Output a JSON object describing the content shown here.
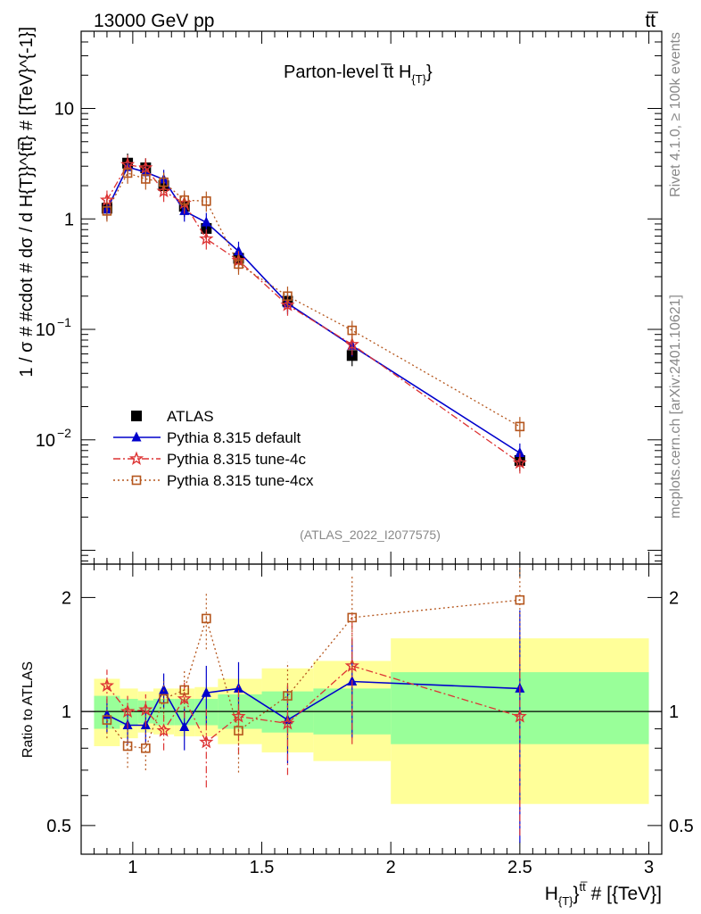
{
  "header": {
    "left": "13000 GeV pp",
    "right": "tt̅"
  },
  "side": {
    "top": "Rivet 4.1.0, ≥ 100k events",
    "bottom": "mcplots.cern.ch [arXiv:2401.10621]"
  },
  "chart_data": [
    {
      "type": "scatter",
      "panel": "main",
      "title": "Parton-level t̅t  H{T}",
      "title_parts": [
        "Parton-level t̅t  H",
        "{T}",
        "}"
      ],
      "ylabel": "1 / σ # #cdot # dσ / d H{T}}^{tt̅} # [{TeV}^{-1}]",
      "yscale": "log",
      "ylim": [
        0.00075,
        50
      ],
      "xlim": [
        0.8,
        3.05
      ],
      "yticks": [
        {
          "v": 10,
          "label": "10"
        },
        {
          "v": 1,
          "label": "1"
        },
        {
          "v": 0.1,
          "label": "10",
          "exp": "−1"
        },
        {
          "v": 0.01,
          "label": "10",
          "exp": "−2"
        }
      ],
      "watermark": "(ATLAS_2022_I2077575)",
      "legend_position": "lower-left",
      "series": [
        {
          "name": "ATLAS",
          "color": "#000000",
          "marker": "square",
          "line": "none",
          "x": [
            0.9,
            0.98,
            1.05,
            1.12,
            1.2,
            1.285,
            1.41,
            1.6,
            1.85,
            2.5
          ],
          "y": [
            1.25,
            3.2,
            2.9,
            2.0,
            1.3,
            0.82,
            0.44,
            0.18,
            0.058,
            0.0065
          ]
        },
        {
          "name": "Pythia 8.315 default",
          "color": "#0000cc",
          "marker": "triangle",
          "line": "solid",
          "x": [
            0.9,
            0.98,
            1.05,
            1.12,
            1.2,
            1.285,
            1.41,
            1.6,
            1.85,
            2.5
          ],
          "y": [
            1.22,
            2.95,
            2.65,
            2.28,
            1.18,
            0.93,
            0.51,
            0.172,
            0.071,
            0.0076
          ]
        },
        {
          "name": "Pythia 8.315 tune-4c",
          "color": "#dd3333",
          "marker": "star",
          "line": "dashdot",
          "x": [
            0.9,
            0.98,
            1.05,
            1.12,
            1.2,
            1.285,
            1.41,
            1.6,
            1.85,
            2.5
          ],
          "y": [
            1.48,
            3.1,
            2.9,
            1.78,
            1.39,
            0.66,
            0.42,
            0.166,
            0.073,
            0.0062
          ]
        },
        {
          "name": "Pythia 8.315 tune-4cx",
          "color": "#b5561d",
          "marker": "open-square",
          "line": "dotted",
          "x": [
            0.9,
            0.98,
            1.05,
            1.12,
            1.2,
            1.285,
            1.41,
            1.6,
            1.85,
            2.5
          ],
          "y": [
            1.18,
            2.6,
            2.3,
            2.15,
            1.48,
            1.45,
            0.39,
            0.2,
            0.098,
            0.0132
          ]
        }
      ]
    },
    {
      "type": "scatter",
      "panel": "ratio",
      "ylabel": "Ratio to ATLAS",
      "xlabel": "H{T}}^{tt̅} # [{TeV}]",
      "xlabel_parts": [
        "H",
        "{T}",
        "}",
        "tt̅",
        " # [{TeV}]"
      ],
      "ylim": [
        0.42,
        2.45
      ],
      "yscale": "log",
      "yticks": [
        {
          "v": 0.5,
          "label": "0.5"
        },
        {
          "v": 1,
          "label": "1"
        },
        {
          "v": 2,
          "label": "2"
        }
      ],
      "xticks": [
        {
          "v": 1,
          "label": "1"
        },
        {
          "v": 1.5,
          "label": "1.5"
        },
        {
          "v": 2,
          "label": "2"
        },
        {
          "v": 2.5,
          "label": "2.5"
        },
        {
          "v": 3,
          "label": "3"
        }
      ],
      "bins": [
        {
          "lo": 0.85,
          "hi": 0.95,
          "stat": [
            0.9,
            1.1
          ],
          "tot": [
            0.81,
            1.22
          ]
        },
        {
          "lo": 0.95,
          "hi": 1.02,
          "stat": [
            0.92,
            1.08
          ],
          "tot": [
            0.85,
            1.15
          ]
        },
        {
          "lo": 1.02,
          "hi": 1.08,
          "stat": [
            0.93,
            1.07
          ],
          "tot": [
            0.88,
            1.13
          ]
        },
        {
          "lo": 1.08,
          "hi": 1.16,
          "stat": [
            0.92,
            1.08
          ],
          "tot": [
            0.87,
            1.15
          ]
        },
        {
          "lo": 1.16,
          "hi": 1.24,
          "stat": [
            0.92,
            1.08
          ],
          "tot": [
            0.86,
            1.15
          ]
        },
        {
          "lo": 1.24,
          "hi": 1.33,
          "stat": [
            0.92,
            1.08
          ],
          "tot": [
            0.86,
            1.16
          ]
        },
        {
          "lo": 1.33,
          "hi": 1.5,
          "stat": [
            0.9,
            1.11
          ],
          "tot": [
            0.82,
            1.22
          ]
        },
        {
          "lo": 1.5,
          "hi": 1.7,
          "stat": [
            0.88,
            1.13
          ],
          "tot": [
            0.78,
            1.3
          ]
        },
        {
          "lo": 1.7,
          "hi": 2.0,
          "stat": [
            0.87,
            1.15
          ],
          "tot": [
            0.74,
            1.36
          ]
        },
        {
          "lo": 2.0,
          "hi": 3.0,
          "stat": [
            0.82,
            1.27
          ],
          "tot": [
            0.57,
            1.56
          ]
        }
      ],
      "series": [
        {
          "name": "Pythia 8.315 default",
          "color": "#0000cc",
          "marker": "triangle",
          "line": "solid",
          "x": [
            0.9,
            0.98,
            1.05,
            1.12,
            1.2,
            1.285,
            1.41,
            1.6,
            1.85,
            2.5
          ],
          "y": [
            0.98,
            0.92,
            0.92,
            1.14,
            0.91,
            1.12,
            1.15,
            0.95,
            1.2,
            1.15
          ],
          "err": [
            0.1,
            0.1,
            0.1,
            0.12,
            0.12,
            0.2,
            0.2,
            0.22,
            0.35,
            0.7
          ]
        },
        {
          "name": "Pythia 8.315 tune-4c",
          "color": "#dd3333",
          "marker": "star",
          "line": "dashdot",
          "x": [
            0.9,
            0.98,
            1.05,
            1.12,
            1.2,
            1.285,
            1.41,
            1.6,
            1.85,
            2.5
          ],
          "y": [
            1.17,
            1.0,
            1.01,
            0.89,
            1.08,
            0.83,
            0.97,
            0.93,
            1.32,
            0.97
          ],
          "err": [
            0.12,
            0.1,
            0.1,
            0.1,
            0.12,
            0.2,
            0.2,
            0.25,
            0.5,
            0.5
          ]
        },
        {
          "name": "Pythia 8.315 tune-4cx",
          "color": "#b5561d",
          "marker": "open-square",
          "line": "dotted",
          "x": [
            0.9,
            0.98,
            1.05,
            1.12,
            1.2,
            1.285,
            1.41,
            1.6,
            1.85,
            2.5
          ],
          "y": [
            0.95,
            0.81,
            0.8,
            1.08,
            1.14,
            1.76,
            0.89,
            1.1,
            1.77,
            1.97
          ],
          "err": [
            0.1,
            0.1,
            0.1,
            0.12,
            0.15,
            0.3,
            0.2,
            0.25,
            0.5,
            0.7
          ]
        }
      ]
    }
  ]
}
